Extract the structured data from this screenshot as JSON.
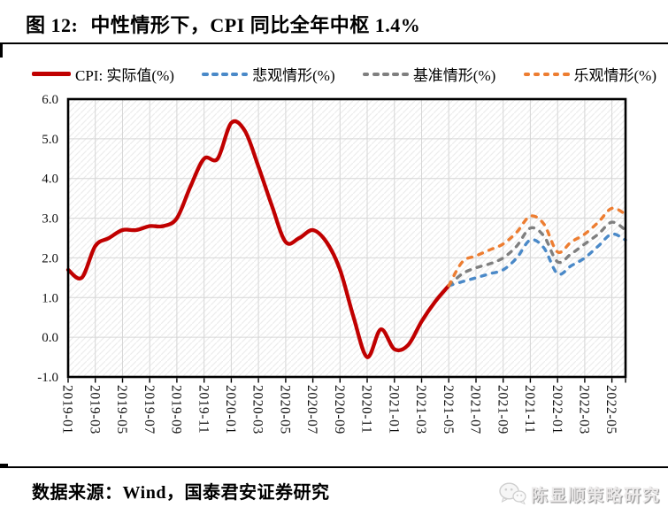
{
  "header": {
    "figure_label": "图 12:",
    "title": "中性情形下，CPI 同比全年中枢 1.4%"
  },
  "legend": [
    {
      "label": "CPI:  实际值(%)",
      "color": "#C00000",
      "style": "solid"
    },
    {
      "label": "悲观情形(%)",
      "color": "#4A89C8",
      "style": "dashed"
    },
    {
      "label": "基准情形(%)",
      "color": "#7F7F7F",
      "style": "dashed"
    },
    {
      "label": "乐观情形(%)",
      "color": "#ED7D31",
      "style": "dashed"
    }
  ],
  "chart_data": {
    "type": "line",
    "title": "中性情形下，CPI 同比全年中枢 1.4%",
    "xlabel": "",
    "ylabel": "",
    "ylim": [
      -1.0,
      6.0
    ],
    "grid": true,
    "legend_position": "top",
    "y_tick_labels": [
      "6.0",
      "5.0",
      "4.0",
      "3.0",
      "2.0",
      "1.0",
      "0.0",
      "-1.0"
    ],
    "x_tick_labels": [
      "2019-01",
      "2019-03",
      "2019-05",
      "2019-07",
      "2019-09",
      "2019-11",
      "2020-01",
      "2020-03",
      "2020-05",
      "2020-07",
      "2020-09",
      "2020-11",
      "2021-01",
      "2021-03",
      "2021-05",
      "2021-07",
      "2021-09",
      "2021-11",
      "2022-01",
      "2022-03",
      "2022-05"
    ],
    "x_months_total": 42,
    "series": [
      {
        "name": "CPI: 实际值(%)",
        "color": "#C00000",
        "style": "solid",
        "x_start_index": 0,
        "months": [
          "2019-01",
          "2019-02",
          "2019-03",
          "2019-04",
          "2019-05",
          "2019-06",
          "2019-07",
          "2019-08",
          "2019-09",
          "2019-10",
          "2019-11",
          "2019-12",
          "2020-01",
          "2020-02",
          "2020-03",
          "2020-04",
          "2020-05",
          "2020-06",
          "2020-07",
          "2020-08",
          "2020-09",
          "2020-10",
          "2020-11",
          "2020-12",
          "2021-01",
          "2021-02",
          "2021-03",
          "2021-04",
          "2021-05"
        ],
        "values": [
          1.7,
          1.5,
          2.3,
          2.5,
          2.7,
          2.7,
          2.8,
          2.8,
          3.0,
          3.8,
          4.5,
          4.5,
          5.4,
          5.2,
          4.3,
          3.3,
          2.4,
          2.5,
          2.7,
          2.4,
          1.7,
          0.5,
          -0.5,
          0.2,
          -0.3,
          -0.2,
          0.4,
          0.9,
          1.3
        ]
      },
      {
        "name": "悲观情形(%)",
        "color": "#4A89C8",
        "style": "dashed",
        "x_start_index": 28,
        "months": [
          "2021-05",
          "2021-06",
          "2021-07",
          "2021-08",
          "2021-09",
          "2021-10",
          "2021-11",
          "2021-12",
          "2022-01",
          "2022-02",
          "2022-03",
          "2022-04",
          "2022-05",
          "2022-06"
        ],
        "values": [
          1.3,
          1.4,
          1.5,
          1.6,
          1.7,
          2.0,
          2.45,
          2.25,
          1.6,
          1.8,
          2.0,
          2.3,
          2.6,
          2.45
        ]
      },
      {
        "name": "基准情形(%)",
        "color": "#7F7F7F",
        "style": "dashed",
        "x_start_index": 28,
        "months": [
          "2021-05",
          "2021-06",
          "2021-07",
          "2021-08",
          "2021-09",
          "2021-10",
          "2021-11",
          "2021-12",
          "2022-01",
          "2022-02",
          "2022-03",
          "2022-04",
          "2022-05",
          "2022-06"
        ],
        "values": [
          1.3,
          1.6,
          1.75,
          1.85,
          2.0,
          2.3,
          2.75,
          2.55,
          1.9,
          2.1,
          2.35,
          2.6,
          2.9,
          2.7
        ]
      },
      {
        "name": "乐观情形(%)",
        "color": "#ED7D31",
        "style": "dashed",
        "x_start_index": 28,
        "months": [
          "2021-05",
          "2021-06",
          "2021-07",
          "2021-08",
          "2021-09",
          "2021-10",
          "2021-11",
          "2021-12",
          "2022-01",
          "2022-02",
          "2022-03",
          "2022-04",
          "2022-05",
          "2022-06"
        ],
        "values": [
          1.3,
          1.9,
          2.05,
          2.2,
          2.35,
          2.65,
          3.05,
          2.85,
          2.15,
          2.4,
          2.6,
          2.9,
          3.25,
          3.1
        ]
      }
    ]
  },
  "footer": {
    "source": "数据来源：Wind，国泰君安证券研究",
    "brand": "陈显顺策略研究"
  }
}
